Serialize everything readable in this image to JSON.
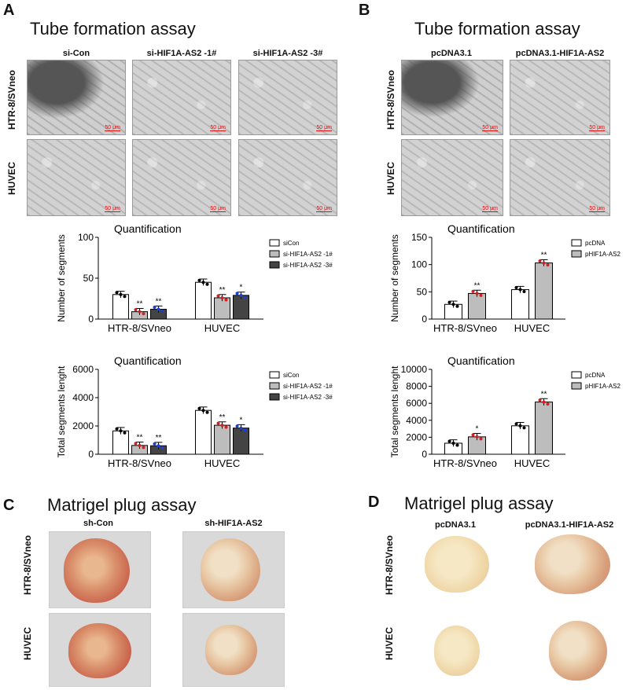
{
  "panels": {
    "A": {
      "label": "A",
      "title": "Tube formation assay",
      "cols": [
        "si-Con",
        "si-HIF1A-AS2 -1#",
        "si-HIF1A-AS2 -3#"
      ],
      "rows": [
        "HTR-8/SVneo",
        "HUVEC"
      ],
      "scalebar": "50 μm"
    },
    "B": {
      "label": "B",
      "title": "Tube formation assay",
      "cols": [
        "pcDNA3.1",
        "pcDNA3.1-HIF1A-AS2"
      ],
      "rows": [
        "HTR-8/SVneo",
        "HUVEC"
      ],
      "scalebar": "50 μm"
    },
    "C": {
      "label": "C",
      "title": "Matrigel plug assay",
      "cols": [
        "sh-Con",
        "sh-HIF1A-AS2"
      ],
      "rows": [
        "HTR-8/SVneo",
        "HUVEC"
      ]
    },
    "D": {
      "label": "D",
      "title": "Matrigel plug assay",
      "cols": [
        "pcDNA3.1",
        "pcDNA3.1-HIF1A-AS2"
      ],
      "rows": [
        "HTR-8/SVneo",
        "HUVEC"
      ]
    }
  },
  "chart_data": [
    {
      "id": "A1",
      "type": "bar",
      "title": "Quantification",
      "ylabel": "Number of segments",
      "ylim": [
        0,
        100
      ],
      "yticks": [
        0,
        50,
        100
      ],
      "categories": [
        "HTR-8/SVneo",
        "HUVEC"
      ],
      "series": [
        {
          "name": "siCon",
          "color": "#ffffff",
          "values": [
            30,
            45
          ],
          "sig": [
            "",
            ""
          ]
        },
        {
          "name": "si-HIF1A-AS2 -1#",
          "color": "#bdbdbd",
          "values": [
            9,
            26
          ],
          "sig": [
            "**",
            "**"
          ]
        },
        {
          "name": "si-HIF1A-AS2 -3#",
          "color": "#444444",
          "values": [
            12,
            29
          ],
          "sig": [
            "**",
            "*"
          ]
        }
      ]
    },
    {
      "id": "A2",
      "type": "bar",
      "title": "Quantification",
      "ylabel": "Total segments lenght",
      "ylim": [
        0,
        6000
      ],
      "yticks": [
        0,
        2000,
        4000,
        6000
      ],
      "categories": [
        "HTR-8/SVneo",
        "HUVEC"
      ],
      "series": [
        {
          "name": "siCon",
          "color": "#ffffff",
          "values": [
            1650,
            3100
          ],
          "sig": [
            "",
            ""
          ]
        },
        {
          "name": "si-HIF1A-AS2 -1#",
          "color": "#bdbdbd",
          "values": [
            620,
            2050
          ],
          "sig": [
            "**",
            "**"
          ]
        },
        {
          "name": "si-HIF1A-AS2 -3#",
          "color": "#444444",
          "values": [
            600,
            1850
          ],
          "sig": [
            "**",
            "*"
          ]
        }
      ]
    },
    {
      "id": "B1",
      "type": "bar",
      "title": "Quantification",
      "ylabel": "Number of segments",
      "ylim": [
        0,
        150
      ],
      "yticks": [
        0,
        50,
        100,
        150
      ],
      "categories": [
        "HTR-8/SVneo",
        "HUVEC"
      ],
      "series": [
        {
          "name": "pcDNA",
          "color": "#ffffff",
          "values": [
            27,
            54
          ],
          "sig": [
            "",
            ""
          ]
        },
        {
          "name": "pHIF1A-AS2",
          "color": "#bdbdbd",
          "values": [
            47,
            103
          ],
          "sig": [
            "**",
            "**"
          ]
        }
      ]
    },
    {
      "id": "B2",
      "type": "bar",
      "title": "Quantification",
      "ylabel": "Total segments lenght",
      "ylim": [
        0,
        10000
      ],
      "yticks": [
        0,
        2000,
        4000,
        6000,
        8000,
        10000
      ],
      "categories": [
        "HTR-8/SVneo",
        "HUVEC"
      ],
      "series": [
        {
          "name": "pcDNA",
          "color": "#ffffff",
          "values": [
            1300,
            3350
          ],
          "sig": [
            "",
            ""
          ]
        },
        {
          "name": "pHIF1A-AS2",
          "color": "#bdbdbd",
          "values": [
            2050,
            6150
          ],
          "sig": [
            "*",
            "**"
          ]
        }
      ]
    }
  ]
}
